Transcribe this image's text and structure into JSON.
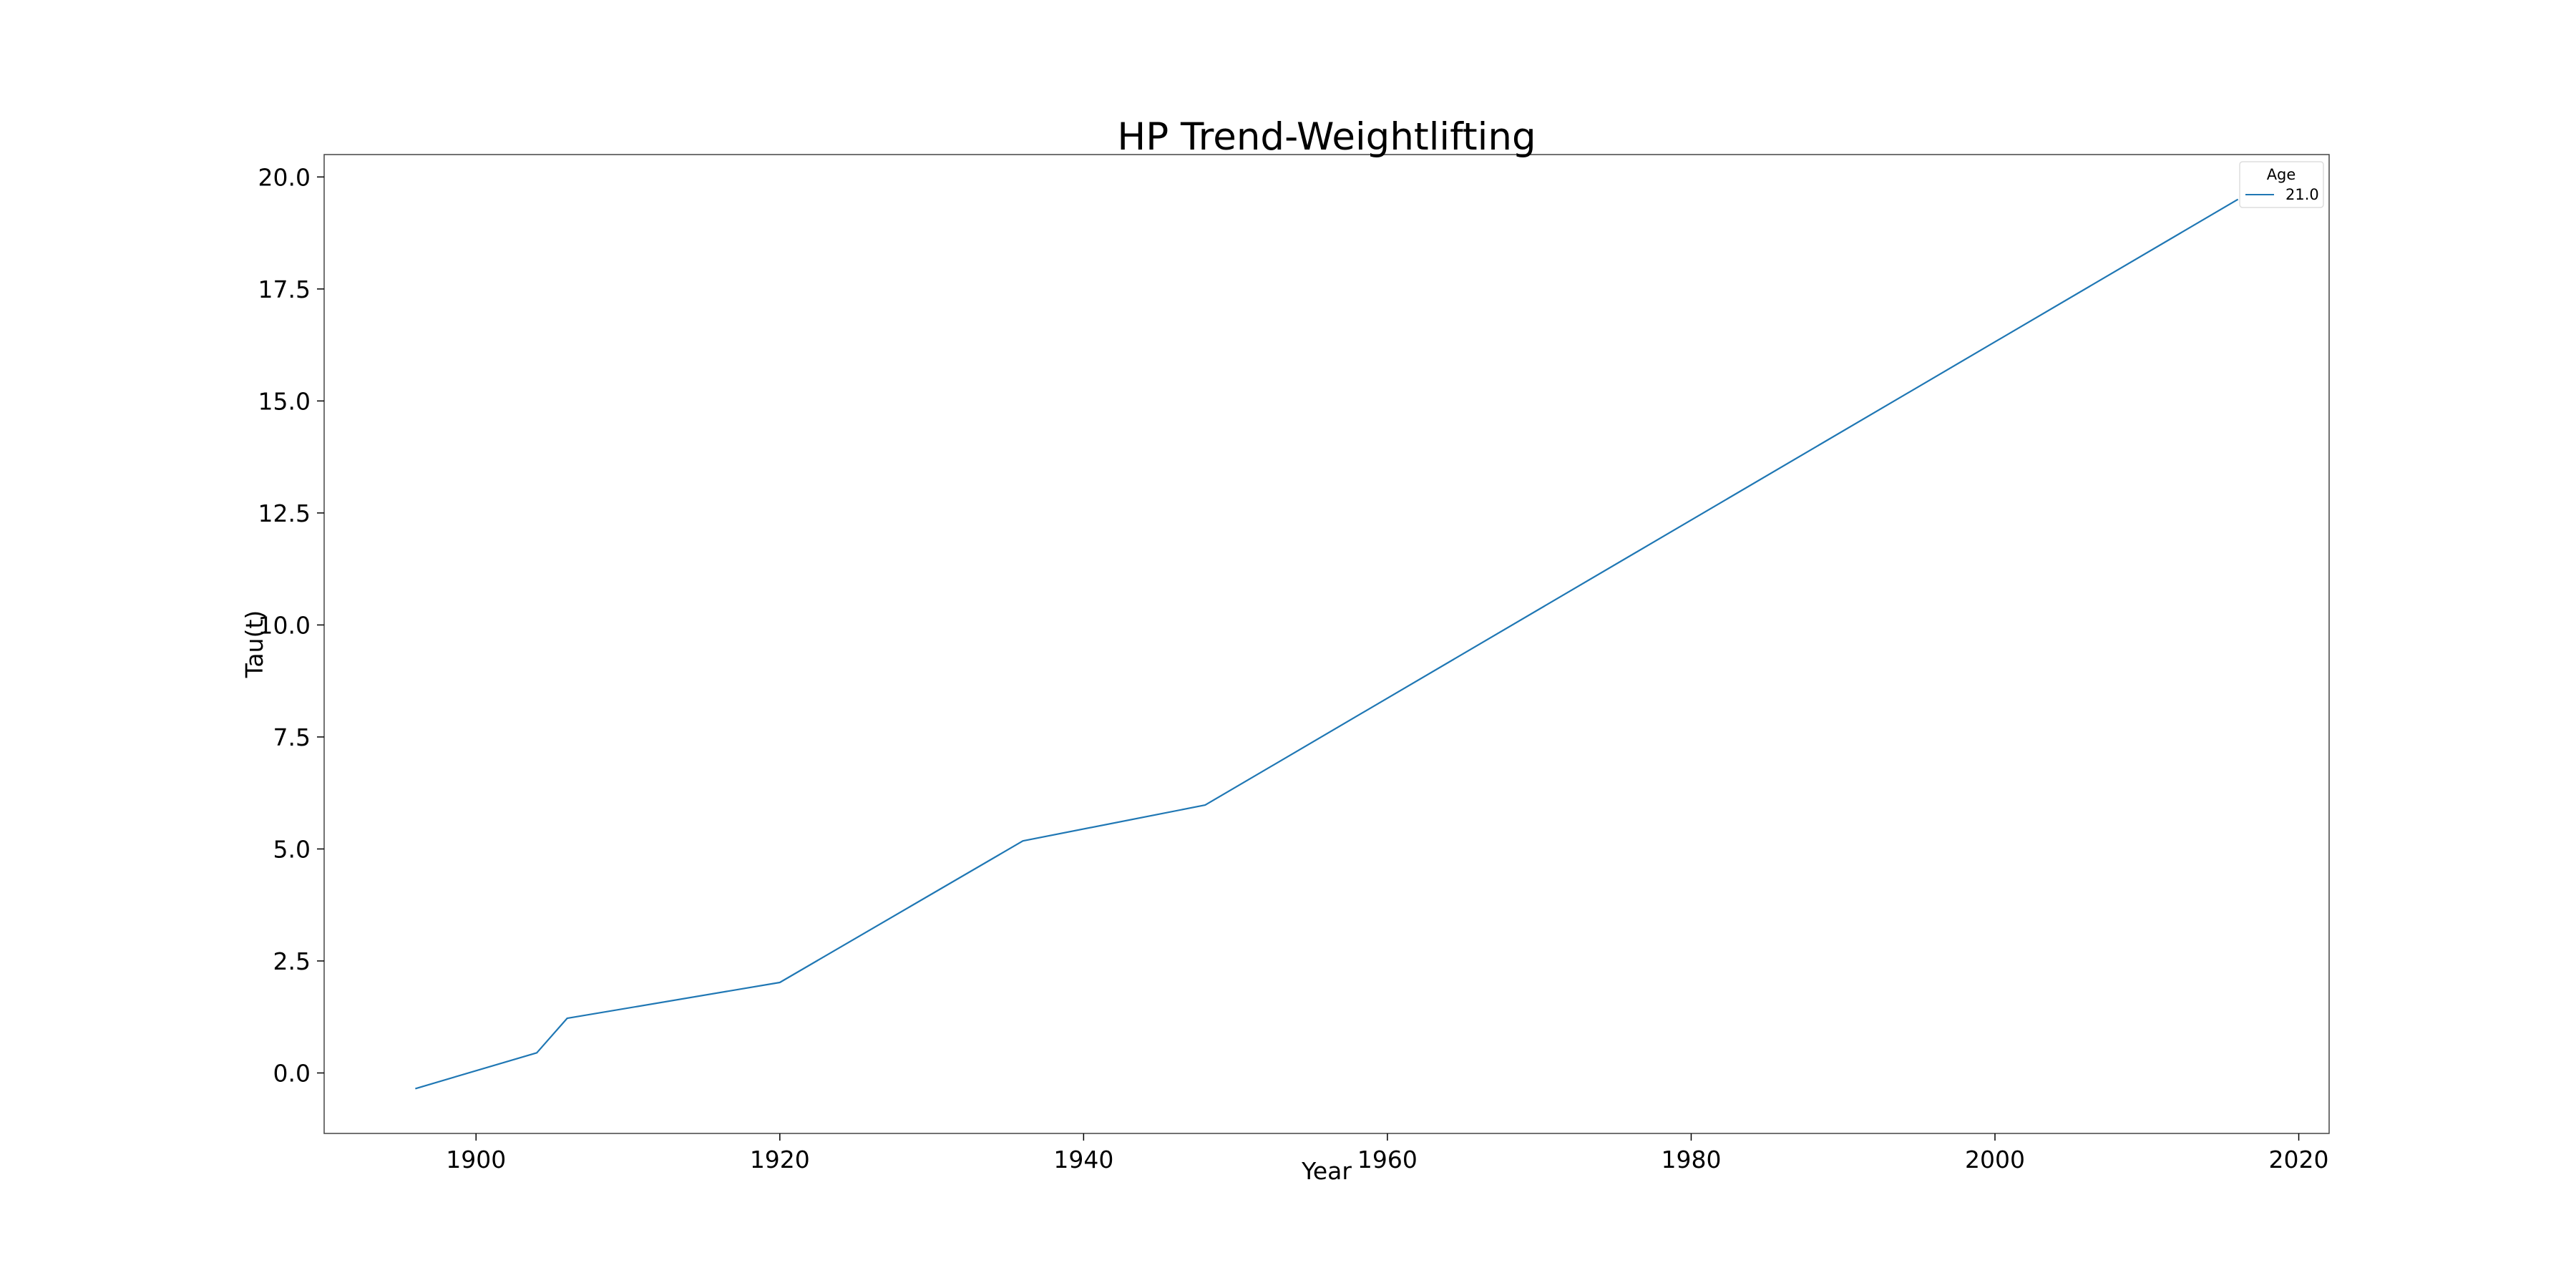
{
  "chart_data": {
    "type": "line",
    "title": "HP Trend-Weightlifting",
    "xlabel": "Year",
    "ylabel": "Tau(t)",
    "xlim": [
      1890,
      2022
    ],
    "ylim": [
      -1.35,
      20.5
    ],
    "xticks": [
      1900,
      1920,
      1940,
      1960,
      1980,
      2000,
      2020
    ],
    "yticks": [
      0.0,
      2.5,
      5.0,
      7.5,
      10.0,
      12.5,
      15.0,
      17.5,
      20.0
    ],
    "xtick_labels": [
      "1900",
      "1920",
      "1940",
      "1960",
      "1980",
      "2000",
      "2020"
    ],
    "ytick_labels": [
      "0.0",
      "2.5",
      "5.0",
      "7.5",
      "10.0",
      "12.5",
      "15.0",
      "17.5",
      "20.0"
    ],
    "grid": false,
    "legend": {
      "title": "Age",
      "placement": "top-right"
    },
    "series": [
      {
        "name": "21.0",
        "color": "#1f77b4",
        "x": [
          1896,
          1904,
          1906,
          1920,
          1936,
          1948,
          2016
        ],
        "y": [
          -0.35,
          0.45,
          1.22,
          2.02,
          5.18,
          5.98,
          19.5
        ]
      }
    ]
  }
}
